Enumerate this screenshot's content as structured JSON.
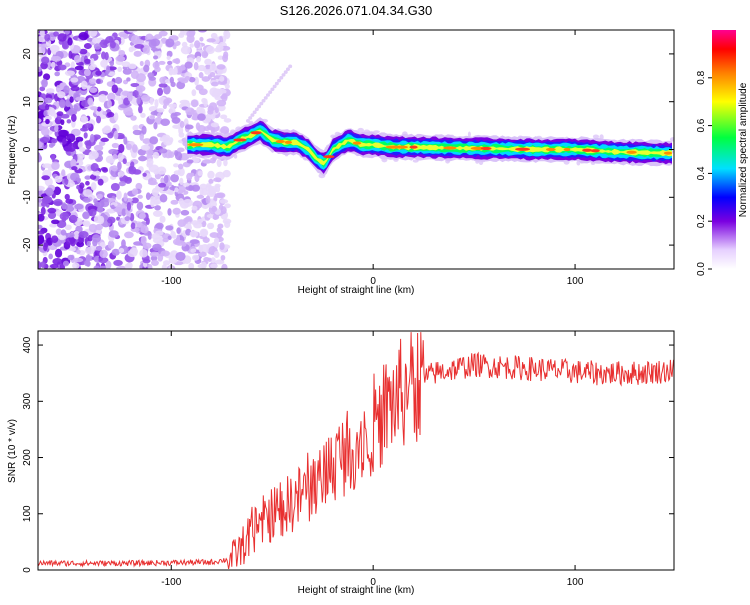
{
  "title": "S126.2026.071.04.34.G30",
  "chart_data": [
    {
      "type": "heatmap",
      "xlabel": "Height of straight line (km)",
      "ylabel": "Frequency (Hz)",
      "xlim": [
        -166,
        149
      ],
      "ylim": [
        -25,
        25
      ],
      "xticks": [
        -100,
        0,
        100
      ],
      "yticks": [
        -20,
        -10,
        0,
        10,
        20
      ],
      "xtick_labels": [
        "-100",
        "0",
        "100"
      ],
      "ytick_labels": [
        "-20",
        "-10",
        "0",
        "10",
        "20"
      ],
      "colorbar": {
        "label": "Normalized spectral amplitude",
        "range": [
          0,
          1
        ],
        "ticks": [
          0.0,
          0.2,
          0.4,
          0.6,
          0.8
        ],
        "tick_labels": [
          "0.0",
          "0.2",
          "0.4",
          "0.6",
          "0.8"
        ]
      },
      "ridge": {
        "x": [
          -92,
          -80,
          -72,
          -66,
          -60,
          -56,
          -50,
          -44,
          -38,
          -32,
          -28,
          -24,
          -20,
          -16,
          -12,
          -6,
          0,
          10,
          20,
          40,
          60,
          80,
          100,
          120,
          149
        ],
        "y": [
          1,
          1,
          0.5,
          2,
          3,
          4,
          2,
          1.5,
          1.5,
          0,
          -2,
          -3,
          0,
          1,
          2,
          1,
          1,
          0.5,
          0.5,
          0.3,
          0.2,
          0,
          0,
          -0.5,
          -0.8
        ]
      },
      "noise_region_x": [
        -166,
        -72
      ]
    },
    {
      "type": "line",
      "xlabel": "Height of straight line (km)",
      "ylabel": "SNR (10 * v/v)",
      "xlim": [
        -166,
        149
      ],
      "ylim": [
        0,
        425
      ],
      "xticks": [
        -100,
        0,
        100
      ],
      "yticks": [
        0,
        100,
        200,
        300,
        400
      ],
      "xtick_labels": [
        "-100",
        "0",
        "100"
      ],
      "ytick_labels": [
        "0",
        "100",
        "200",
        "300",
        "400"
      ],
      "series": [
        {
          "name": "SNR",
          "color": "#e83030",
          "trend_x": [
            -166,
            -120,
            -80,
            -70,
            -65,
            -60,
            -50,
            -40,
            -30,
            -20,
            -10,
            0,
            10,
            20,
            30,
            50,
            70,
            90,
            110,
            130,
            149
          ],
          "trend_y": [
            12,
            12,
            14,
            20,
            40,
            70,
            100,
            120,
            150,
            190,
            220,
            260,
            300,
            330,
            350,
            365,
            360,
            355,
            350,
            350,
            355
          ]
        }
      ]
    }
  ]
}
